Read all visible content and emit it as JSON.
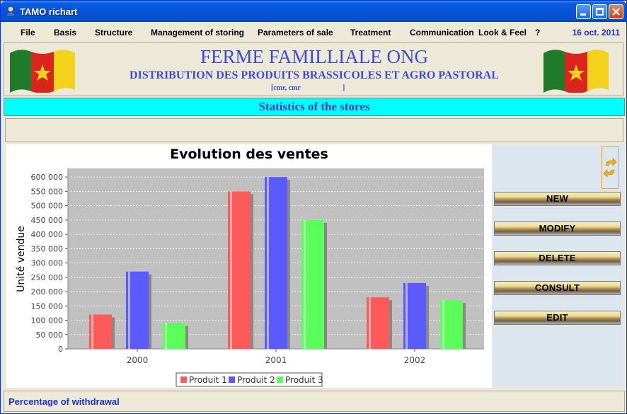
{
  "window": {
    "title": "TAMO richart"
  },
  "menu": {
    "items": [
      "File",
      "Basis",
      "Structure",
      "Management of storing",
      "Parameters of sale",
      "Treatment",
      "Communication",
      "Look & Feel",
      "?"
    ],
    "date": "16 oct. 2011"
  },
  "banner": {
    "title": "FERME FAMILLIALE ONG",
    "subtitle": "DISTRIBUTION DES PRODUITS BRASSICOLES ET AGRO PASTORAL",
    "small_left": "[cmr, cmr",
    "small_right": "]"
  },
  "section_title": "Statistics of the stores",
  "actions": {
    "new": "NEW",
    "modify": "MODIFY",
    "delete": "DELETE",
    "consult": "CONSULT",
    "edit": "EDIT"
  },
  "status": "Percentage of withdrawal",
  "colors": {
    "series1": "#ff5a5a",
    "series2": "#5a5aff",
    "series3": "#5aff5a",
    "plot_bg": "#c0c0c0",
    "banner_text": "#3f4bd6"
  },
  "chart_data": {
    "type": "bar",
    "title": "Evolution des ventes",
    "xlabel": "",
    "ylabel": "Unité vendue",
    "categories": [
      "2000",
      "2001",
      "2002"
    ],
    "series": [
      {
        "name": "Produit 1",
        "values": [
          120000,
          550000,
          180000
        ]
      },
      {
        "name": "Produit 2",
        "values": [
          270000,
          600000,
          230000
        ]
      },
      {
        "name": "Produit 3",
        "values": [
          90000,
          450000,
          170000
        ]
      }
    ],
    "ylim": [
      0,
      630000
    ],
    "yticks": [
      "0",
      "50 000",
      "100 000",
      "150 000",
      "200 000",
      "250 000",
      "300 000",
      "350 000",
      "400 000",
      "450 000",
      "500 000",
      "550 000",
      "600 000"
    ],
    "grid": true,
    "legend": "bottom"
  }
}
